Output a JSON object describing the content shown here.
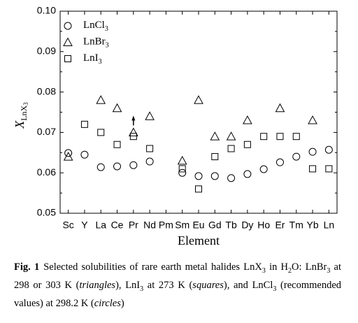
{
  "chart_data": {
    "type": "scatter",
    "xlabel": "Element",
    "ylabel": "X",
    "ylabel_subscript": "LnX",
    "ylabel_subsubscript": "3",
    "categories": [
      "Sc",
      "Y",
      "La",
      "Ce",
      "Pr",
      "Nd",
      "Pm",
      "Sm",
      "Eu",
      "Gd",
      "Tb",
      "Dy",
      "Ho",
      "Er",
      "Tm",
      "Yb",
      "Ln"
    ],
    "series": [
      {
        "name": "LnCl3",
        "name_text": "LnCl",
        "name_subscript": "3",
        "marker": "circle",
        "color": "#000000",
        "values": [
          0.0649,
          0.0645,
          0.0614,
          0.0616,
          0.0619,
          0.0628,
          null,
          0.06,
          0.0592,
          0.0592,
          0.0587,
          0.0597,
          0.0609,
          0.0626,
          0.064,
          0.0652,
          0.0657
        ]
      },
      {
        "name": "LnBr3",
        "name_text": "LnBr",
        "name_subscript": "3",
        "marker": "triangle",
        "color": "#000000",
        "values": [
          0.064,
          null,
          0.078,
          0.076,
          0.07,
          0.074,
          null,
          0.063,
          0.078,
          0.069,
          0.069,
          0.073,
          null,
          0.076,
          null,
          0.073,
          null
        ]
      },
      {
        "name": "LnI3",
        "name_text": "LnI",
        "name_subscript": "3",
        "marker": "square",
        "color": "#000000",
        "values": [
          null,
          0.072,
          0.07,
          0.067,
          0.069,
          0.066,
          null,
          0.061,
          0.056,
          0.064,
          0.066,
          0.067,
          0.069,
          0.069,
          0.069,
          0.061,
          0.061
        ]
      }
    ],
    "ylim": [
      0.05,
      0.1
    ],
    "yticks": [
      0.05,
      0.06,
      0.07,
      0.08,
      0.09,
      {
        "value": 0.1,
        "label": "0.10"
      }
    ],
    "legend": "upper left"
  },
  "caption": {
    "label": "Fig. 1",
    "segments": [
      {
        "text": "Selected solubilities of rare earth metal halides LnX"
      },
      {
        "text": "3",
        "style": "sub"
      },
      {
        "text": " in H"
      },
      {
        "text": "2",
        "style": "sub"
      },
      {
        "text": "O: LnBr"
      },
      {
        "text": "3",
        "style": "sub"
      },
      {
        "text": " at 298 or 303 K ("
      },
      {
        "text": "triangles",
        "style": "italic"
      },
      {
        "text": "), LnI"
      },
      {
        "text": "3",
        "style": "sub"
      },
      {
        "text": " at 273 K ("
      },
      {
        "text": "squares",
        "style": "italic"
      },
      {
        "text": "), and LnCl"
      },
      {
        "text": "3",
        "style": "sub"
      },
      {
        "text": " (recommended values) at 298.2 K ("
      },
      {
        "text": "circles",
        "style": "italic"
      },
      {
        "text": ")"
      }
    ]
  }
}
